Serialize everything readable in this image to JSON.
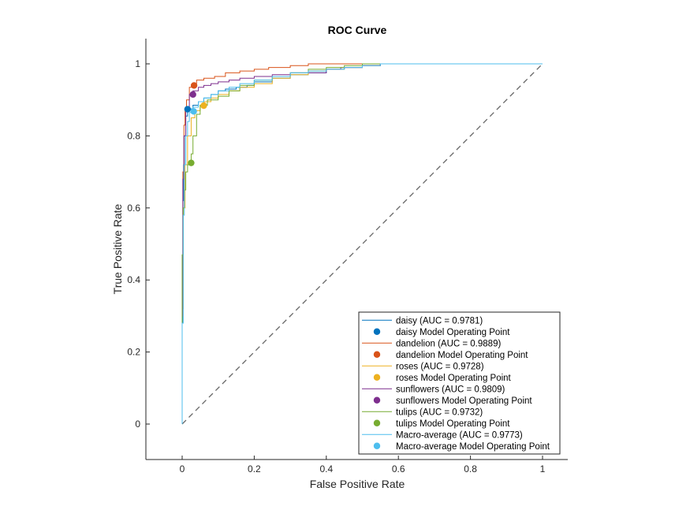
{
  "chart_data": {
    "type": "line",
    "title": "ROC Curve",
    "xlabel": "False Positive Rate",
    "ylabel": "True Positive Rate",
    "xlim": [
      -0.1,
      1.07
    ],
    "ylim": [
      -0.1,
      1.07
    ],
    "xticks": [
      0,
      0.2,
      0.4,
      0.6,
      0.8,
      1
    ],
    "yticks": [
      0,
      0.2,
      0.4,
      0.6,
      0.8,
      1
    ],
    "xtick_labels": [
      "0",
      "0.2",
      "0.4",
      "0.6",
      "0.8",
      "1"
    ],
    "ytick_labels": [
      "0",
      "0.2",
      "0.4",
      "0.6",
      "0.8",
      "1"
    ],
    "grid": false,
    "legend_position": "bottom-right",
    "chance_line": {
      "x": [
        0,
        1
      ],
      "y": [
        0,
        1
      ],
      "style": "dashed",
      "color": "#666666"
    },
    "series": [
      {
        "name": "daisy (AUC = 0.9781)",
        "color": "#0072BD",
        "x": [
          0,
          0.002,
          0.004,
          0.006,
          0.01,
          0.015,
          0.02,
          0.03,
          0.045,
          0.06,
          0.08,
          0.1,
          0.12,
          0.15,
          0.18,
          0.2,
          0.25,
          0.3,
          0.35,
          0.4,
          0.45,
          0.5,
          0.55,
          0.58,
          1
        ],
        "y": [
          0,
          0.28,
          0.62,
          0.72,
          0.8,
          0.855,
          0.87,
          0.875,
          0.885,
          0.895,
          0.905,
          0.915,
          0.925,
          0.93,
          0.935,
          0.94,
          0.95,
          0.96,
          0.97,
          0.975,
          0.985,
          0.99,
          0.995,
          1,
          1
        ],
        "operating_point": {
          "label": "daisy Model Operating Point",
          "x": 0.015,
          "y": 0.874
        }
      },
      {
        "name": "dandelion (AUC = 0.9889)",
        "color": "#D95319",
        "x": [
          0,
          0.002,
          0.005,
          0.008,
          0.012,
          0.02,
          0.03,
          0.04,
          0.06,
          0.09,
          0.12,
          0.16,
          0.2,
          0.24,
          0.3,
          0.35,
          0.4,
          0.45,
          1
        ],
        "y": [
          0,
          0.3,
          0.7,
          0.83,
          0.87,
          0.9,
          0.935,
          0.945,
          0.955,
          0.96,
          0.965,
          0.975,
          0.98,
          0.985,
          0.99,
          0.995,
          1,
          1,
          1
        ],
        "operating_point": {
          "label": "dandelion Model Operating Point",
          "x": 0.033,
          "y": 0.94
        }
      },
      {
        "name": "roses (AUC = 0.9728)",
        "color": "#EDB120",
        "x": [
          0,
          0.003,
          0.008,
          0.015,
          0.025,
          0.035,
          0.05,
          0.06,
          0.08,
          0.1,
          0.13,
          0.16,
          0.2,
          0.25,
          0.3,
          0.35,
          0.4,
          0.45,
          0.5,
          0.55,
          0.58,
          1
        ],
        "y": [
          0,
          0.32,
          0.6,
          0.72,
          0.8,
          0.85,
          0.87,
          0.885,
          0.895,
          0.905,
          0.915,
          0.925,
          0.935,
          0.945,
          0.96,
          0.97,
          0.98,
          0.985,
          0.99,
          0.995,
          1,
          1
        ],
        "operating_point": {
          "label": "roses Model Operating Point",
          "x": 0.06,
          "y": 0.884
        }
      },
      {
        "name": "sunflowers (AUC = 0.9809)",
        "color": "#7E2F8E",
        "x": [
          0,
          0.002,
          0.005,
          0.01,
          0.02,
          0.03,
          0.045,
          0.06,
          0.08,
          0.1,
          0.13,
          0.16,
          0.2,
          0.25,
          0.3,
          0.35,
          0.4,
          0.44,
          0.5,
          0.55,
          0.58,
          1
        ],
        "y": [
          0,
          0.3,
          0.68,
          0.8,
          0.88,
          0.915,
          0.925,
          0.935,
          0.94,
          0.945,
          0.95,
          0.955,
          0.96,
          0.965,
          0.97,
          0.975,
          0.975,
          0.985,
          0.99,
          0.995,
          1,
          1
        ],
        "operating_point": {
          "label": "sunflowers Model Operating Point",
          "x": 0.03,
          "y": 0.915
        }
      },
      {
        "name": "tulips (AUC = 0.9732)",
        "color": "#77AC30",
        "x": [
          0,
          0.003,
          0.006,
          0.01,
          0.015,
          0.02,
          0.025,
          0.03,
          0.04,
          0.05,
          0.07,
          0.1,
          0.13,
          0.16,
          0.2,
          0.25,
          0.3,
          0.35,
          0.4,
          0.45,
          0.5,
          0.55,
          0.58,
          1
        ],
        "y": [
          0,
          0.47,
          0.6,
          0.65,
          0.7,
          0.72,
          0.725,
          0.75,
          0.8,
          0.86,
          0.885,
          0.9,
          0.91,
          0.925,
          0.94,
          0.955,
          0.965,
          0.975,
          0.985,
          0.99,
          0.995,
          1,
          1,
          1
        ],
        "operating_point": {
          "label": "tulips Model Operating Point",
          "x": 0.025,
          "y": 0.725
        }
      },
      {
        "name": "Macro-average (AUC = 0.9773)",
        "color": "#4DBEEE",
        "x": [
          0,
          0.003,
          0.006,
          0.01,
          0.015,
          0.02,
          0.03,
          0.045,
          0.06,
          0.08,
          0.1,
          0.13,
          0.16,
          0.2,
          0.25,
          0.3,
          0.35,
          0.4,
          0.45,
          0.5,
          0.55,
          0.58,
          1
        ],
        "y": [
          0,
          0.28,
          0.58,
          0.72,
          0.8,
          0.84,
          0.865,
          0.88,
          0.895,
          0.905,
          0.915,
          0.925,
          0.935,
          0.945,
          0.955,
          0.965,
          0.975,
          0.98,
          0.985,
          0.99,
          0.995,
          1,
          1
        ],
        "operating_point": {
          "label": "Macro-average Model Operating Point",
          "x": 0.032,
          "y": 0.868
        }
      }
    ]
  }
}
